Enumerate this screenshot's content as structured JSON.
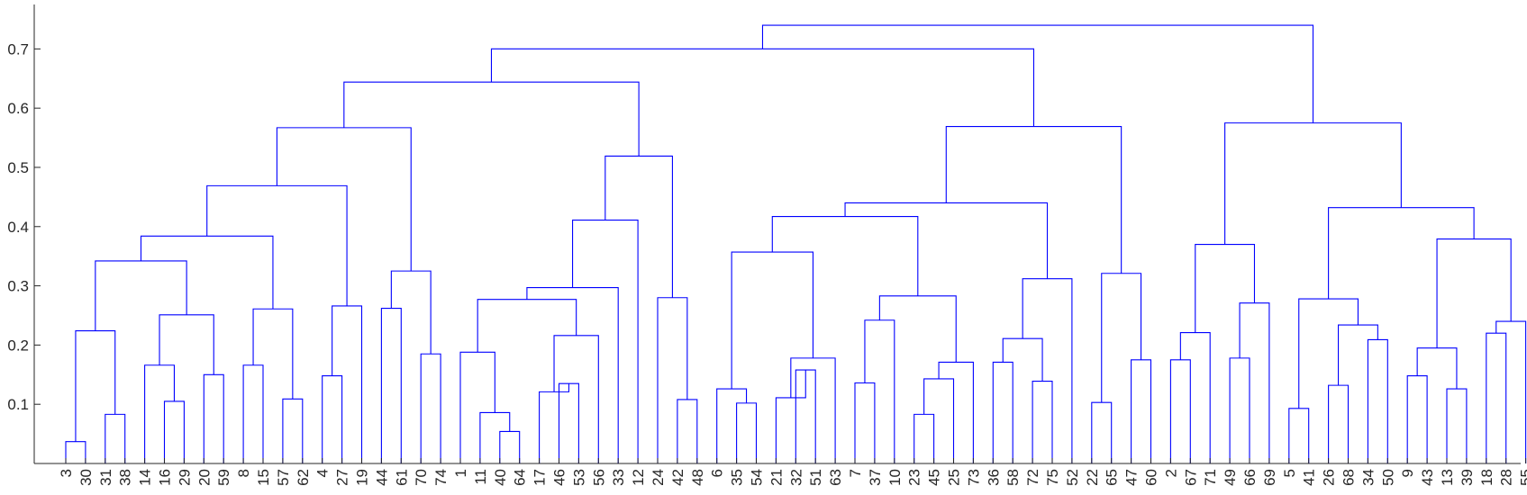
{
  "chart_data": {
    "type": "dendrogram",
    "title": "",
    "xlabel": "",
    "ylabel": "",
    "ylim": [
      0,
      0.775
    ],
    "yticks": [
      0.1,
      0.2,
      0.3,
      0.4,
      0.5,
      0.6,
      0.7
    ],
    "link_color": "#0000ff",
    "leaf_order": [
      "3",
      "30",
      "31",
      "38",
      "14",
      "16",
      "29",
      "20",
      "59",
      "8",
      "15",
      "57",
      "62",
      "4",
      "27",
      "19",
      "44",
      "61",
      "70",
      "74",
      "1",
      "11",
      "40",
      "64",
      "17",
      "46",
      "53",
      "56",
      "33",
      "12",
      "24",
      "42",
      "48",
      "6",
      "35",
      "54",
      "21",
      "32",
      "51",
      "63",
      "7",
      "37",
      "10",
      "23",
      "45",
      "25",
      "73",
      "36",
      "58",
      "72",
      "75",
      "52",
      "22",
      "65",
      "47",
      "60",
      "2",
      "67",
      "71",
      "49",
      "66",
      "69",
      "5",
      "41",
      "26",
      "68",
      "34",
      "50",
      "9",
      "43",
      "13",
      "39",
      "18",
      "28",
      "55"
    ],
    "merges": [
      {
        "a": "3",
        "b": "30",
        "height": 0.037,
        "id": "c1"
      },
      {
        "a": "31",
        "b": "38",
        "height": 0.083,
        "id": "c2"
      },
      {
        "a": "c1",
        "b": "c2",
        "height": 0.224,
        "id": "c3"
      },
      {
        "a": "16",
        "b": "29",
        "height": 0.105,
        "id": "c4"
      },
      {
        "a": "14",
        "b": "c4",
        "height": 0.166,
        "id": "c5"
      },
      {
        "a": "20",
        "b": "59",
        "height": 0.15,
        "id": "c6"
      },
      {
        "a": "c5",
        "b": "c6",
        "height": 0.251,
        "id": "c7"
      },
      {
        "a": "c3",
        "b": "c7",
        "height": 0.342,
        "id": "c8"
      },
      {
        "a": "8",
        "b": "15",
        "height": 0.166,
        "id": "c9"
      },
      {
        "a": "57",
        "b": "62",
        "height": 0.109,
        "id": "c10"
      },
      {
        "a": "c9",
        "b": "c10",
        "height": 0.261,
        "id": "c11"
      },
      {
        "a": "c8",
        "b": "c11",
        "height": 0.384,
        "id": "c12"
      },
      {
        "a": "4",
        "b": "27",
        "height": 0.148,
        "id": "c13"
      },
      {
        "a": "c13",
        "b": "19",
        "height": 0.266,
        "id": "c14"
      },
      {
        "a": "c12",
        "b": "c14",
        "height": 0.469,
        "id": "c15"
      },
      {
        "a": "44",
        "b": "61",
        "height": 0.262,
        "id": "c16"
      },
      {
        "a": "70",
        "b": "74",
        "height": 0.185,
        "id": "c17"
      },
      {
        "a": "c16",
        "b": "c17",
        "height": 0.325,
        "id": "c18"
      },
      {
        "a": "c15",
        "b": "c18",
        "height": 0.567,
        "id": "c19"
      },
      {
        "a": "40",
        "b": "64",
        "height": 0.054,
        "id": "c20"
      },
      {
        "a": "11",
        "b": "c20",
        "height": 0.086,
        "id": "c21"
      },
      {
        "a": "1",
        "b": "c21",
        "height": 0.188,
        "id": "c22"
      },
      {
        "a": "46",
        "b": "53",
        "height": 0.135,
        "id": "c23"
      },
      {
        "a": "17",
        "b": "c23",
        "height": 0.121,
        "id": "c24"
      },
      {
        "a": "c24",
        "b": "56",
        "height": 0.216,
        "id": "c25"
      },
      {
        "a": "c22",
        "b": "c25",
        "height": 0.277,
        "id": "c26"
      },
      {
        "a": "c26",
        "b": "33",
        "height": 0.297,
        "id": "c27"
      },
      {
        "a": "c27",
        "b": "12",
        "height": 0.411,
        "id": "c28"
      },
      {
        "a": "42",
        "b": "48",
        "height": 0.108,
        "id": "c29"
      },
      {
        "a": "24",
        "b": "c29",
        "height": 0.28,
        "id": "c30"
      },
      {
        "a": "c28",
        "b": "c30",
        "height": 0.519,
        "id": "c31"
      },
      {
        "a": "c19",
        "b": "c31",
        "height": 0.644,
        "id": "c32"
      },
      {
        "a": "35",
        "b": "54",
        "height": 0.102,
        "id": "c33"
      },
      {
        "a": "6",
        "b": "c33",
        "height": 0.126,
        "id": "c34"
      },
      {
        "a": "32",
        "b": "51",
        "height": 0.158,
        "id": "c35"
      },
      {
        "a": "21",
        "b": "c35",
        "height": 0.111,
        "id": "c36"
      },
      {
        "a": "c36",
        "b": "63",
        "height": 0.178,
        "id": "c37"
      },
      {
        "a": "c34",
        "b": "c37",
        "height": 0.357,
        "id": "c38"
      },
      {
        "a": "7",
        "b": "37",
        "height": 0.136,
        "id": "c39"
      },
      {
        "a": "c39",
        "b": "10",
        "height": 0.242,
        "id": "c40"
      },
      {
        "a": "23",
        "b": "45",
        "height": 0.083,
        "id": "c41"
      },
      {
        "a": "c41",
        "b": "25",
        "height": 0.143,
        "id": "c42"
      },
      {
        "a": "c42",
        "b": "73",
        "height": 0.171,
        "id": "c43"
      },
      {
        "a": "c40",
        "b": "c43",
        "height": 0.283,
        "id": "c44"
      },
      {
        "a": "c38",
        "b": "c44",
        "height": 0.417,
        "id": "c45"
      },
      {
        "a": "36",
        "b": "58",
        "height": 0.171,
        "id": "c46"
      },
      {
        "a": "72",
        "b": "75",
        "height": 0.139,
        "id": "c47"
      },
      {
        "a": "c46",
        "b": "c47",
        "height": 0.211,
        "id": "c48"
      },
      {
        "a": "c48",
        "b": "52",
        "height": 0.312,
        "id": "c49"
      },
      {
        "a": "c45",
        "b": "c49",
        "height": 0.44,
        "id": "c50"
      },
      {
        "a": "22",
        "b": "65",
        "height": 0.103,
        "id": "c51"
      },
      {
        "a": "47",
        "b": "60",
        "height": 0.175,
        "id": "c52"
      },
      {
        "a": "c51",
        "b": "c52",
        "height": 0.321,
        "id": "c53"
      },
      {
        "a": "c50",
        "b": "c53",
        "height": 0.569,
        "id": "c54"
      },
      {
        "a": "c32",
        "b": "c54",
        "height": 0.7,
        "id": "c55"
      },
      {
        "a": "2",
        "b": "67",
        "height": 0.175,
        "id": "c56"
      },
      {
        "a": "c56",
        "b": "71",
        "height": 0.221,
        "id": "c57"
      },
      {
        "a": "49",
        "b": "66",
        "height": 0.178,
        "id": "c58"
      },
      {
        "a": "c58",
        "b": "69",
        "height": 0.271,
        "id": "c59"
      },
      {
        "a": "c57",
        "b": "c59",
        "height": 0.37,
        "id": "c60"
      },
      {
        "a": "5",
        "b": "41",
        "height": 0.093,
        "id": "c61"
      },
      {
        "a": "26",
        "b": "68",
        "height": 0.132,
        "id": "c62"
      },
      {
        "a": "34",
        "b": "50",
        "height": 0.209,
        "id": "c63"
      },
      {
        "a": "c62",
        "b": "c63",
        "height": 0.234,
        "id": "c64"
      },
      {
        "a": "c61",
        "b": "c64",
        "height": 0.278,
        "id": "c65"
      },
      {
        "a": "9",
        "b": "43",
        "height": 0.148,
        "id": "c66"
      },
      {
        "a": "13",
        "b": "39",
        "height": 0.126,
        "id": "c67"
      },
      {
        "a": "c66",
        "b": "c67",
        "height": 0.195,
        "id": "c68"
      },
      {
        "a": "18",
        "b": "28",
        "height": 0.22,
        "id": "c69"
      },
      {
        "a": "c69",
        "b": "55",
        "height": 0.24,
        "id": "c70"
      },
      {
        "a": "c68",
        "b": "c70",
        "height": 0.379,
        "id": "c71"
      },
      {
        "a": "c65",
        "b": "c71",
        "height": 0.432,
        "id": "c72"
      },
      {
        "a": "c60",
        "b": "c72",
        "height": 0.575,
        "id": "c73"
      },
      {
        "a": "c55",
        "b": "c73",
        "height": 0.74,
        "id": "c74"
      }
    ]
  }
}
